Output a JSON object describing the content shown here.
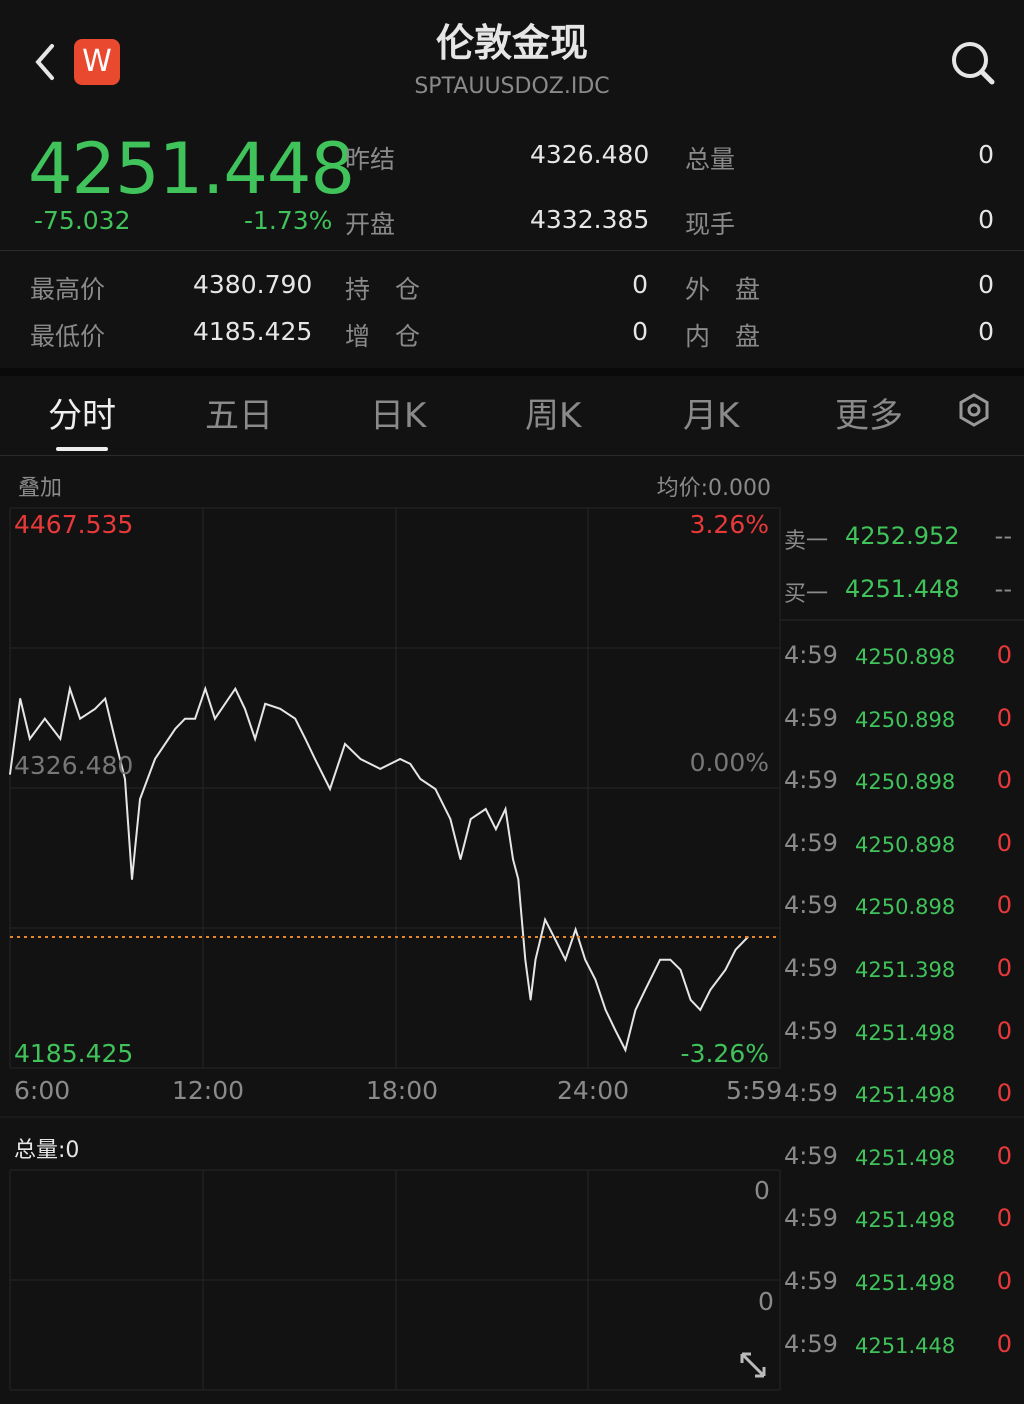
{
  "header": {
    "title": "伦敦金现",
    "code": "SPTAUUSDOZ.IDC",
    "logo": "W",
    "back_icon": "chevron-left-icon",
    "search_icon": "search-icon"
  },
  "quote": {
    "price": "4251.448",
    "change": "-75.032",
    "change_pct": "-1.73%",
    "fields": [
      {
        "label": "昨结",
        "value": "4326.480"
      },
      {
        "label": "总量",
        "value": "0"
      },
      {
        "label": "开盘",
        "value": "4332.385"
      },
      {
        "label": "现手",
        "value": "0"
      }
    ]
  },
  "stats": [
    {
      "label": "最高价",
      "value": "4380.790"
    },
    {
      "label": "持　仓",
      "value": "0"
    },
    {
      "label": "外　盘",
      "value": "0"
    },
    {
      "label": "最低价",
      "value": "4185.425"
    },
    {
      "label": "增　仓",
      "value": "0"
    },
    {
      "label": "内　盘",
      "value": "0"
    }
  ],
  "tabs": [
    {
      "label": "分时",
      "active": true
    },
    {
      "label": "五日"
    },
    {
      "label": "日K"
    },
    {
      "label": "周K"
    },
    {
      "label": "月K"
    },
    {
      "label": "更多"
    }
  ],
  "chart_header": {
    "overlay": "叠加",
    "avg_price": "均价:0.000"
  },
  "chart_data": {
    "type": "line",
    "ylim": [
      4185.425,
      4467.535
    ],
    "prev_close": 4326.48,
    "current": 4251.448,
    "y_labels": {
      "top": "4467.535",
      "mid": "4326.480",
      "bottom": "4185.425"
    },
    "pct_labels": {
      "top": "3.26%",
      "mid": "0.00%",
      "bottom": "-3.26%"
    },
    "x_ticks": [
      "6:00",
      "12:00",
      "18:00",
      "24:00",
      "5:59"
    ],
    "x": [
      "6:00",
      "6:19",
      "6:37",
      "7:05",
      "7:34",
      "7:52",
      "8:11",
      "8:39",
      "8:58",
      "9:16",
      "9:35",
      "9:48",
      "10:03",
      "10:31",
      "11:09",
      "11:27",
      "11:46",
      "12:05",
      "12:23",
      "13:01",
      "13:19",
      "13:38",
      "13:57",
      "14:25",
      "14:53",
      "15:12",
      "15:30",
      "15:58",
      "16:26",
      "16:55",
      "17:32",
      "18:09",
      "18:28",
      "18:47",
      "19:15",
      "19:43",
      "20:02",
      "20:21",
      "20:49",
      "21:08",
      "21:26",
      "21:40",
      "21:50",
      "22:03",
      "22:13",
      "22:22",
      "22:40",
      "22:59",
      "23:18",
      "23:37",
      "23:55",
      "0:14",
      "0:33",
      "0:51",
      "1:10",
      "1:29",
      "1:47",
      "2:15",
      "2:34",
      "2:53",
      "3:12",
      "3:30",
      "3:49",
      "4:17",
      "4:36",
      "4:59"
    ],
    "y": [
      4333.5,
      4371.5,
      4351.2,
      4361.4,
      4351.2,
      4376.5,
      4361.4,
      4366.4,
      4371.5,
      4351.2,
      4331.0,
      4280.5,
      4320.9,
      4341.1,
      4356.3,
      4361.4,
      4361.4,
      4376.5,
      4361.4,
      4376.5,
      4366.4,
      4351.2,
      4368.9,
      4366.4,
      4361.4,
      4351.2,
      4341.1,
      4326.0,
      4348.7,
      4341.1,
      4336.1,
      4341.1,
      4338.6,
      4331.0,
      4326.0,
      4310.8,
      4290.6,
      4310.8,
      4315.9,
      4305.7,
      4315.9,
      4290.6,
      4280.5,
      4240.0,
      4219.8,
      4240.0,
      4260.2,
      4250.1,
      4240.0,
      4255.2,
      4240.0,
      4229.9,
      4214.7,
      4204.6,
      4194.5,
      4214.7,
      4224.8,
      4240.0,
      4240.0,
      4234.9,
      4219.8,
      4214.7,
      4224.8,
      4234.9,
      4245.0,
      4251.4
    ]
  },
  "volume": {
    "label": "总量:0",
    "top": "0",
    "bottom": "0",
    "expand_icon": "expand-icon"
  },
  "order_book": [
    {
      "label": "卖一",
      "price": "4252.952",
      "qty": "--"
    },
    {
      "label": "买一",
      "price": "4251.448",
      "qty": "--"
    }
  ],
  "trades": [
    {
      "time": "4:59",
      "price": "4250.898",
      "qty": "0"
    },
    {
      "time": "4:59",
      "price": "4250.898",
      "qty": "0"
    },
    {
      "time": "4:59",
      "price": "4250.898",
      "qty": "0"
    },
    {
      "time": "4:59",
      "price": "4250.898",
      "qty": "0"
    },
    {
      "time": "4:59",
      "price": "4250.898",
      "qty": "0"
    },
    {
      "time": "4:59",
      "price": "4251.398",
      "qty": "0"
    },
    {
      "time": "4:59",
      "price": "4251.498",
      "qty": "0"
    },
    {
      "time": "4:59",
      "price": "4251.498",
      "qty": "0"
    },
    {
      "time": "4:59",
      "price": "4251.498",
      "qty": "0"
    },
    {
      "time": "4:59",
      "price": "4251.498",
      "qty": "0"
    },
    {
      "time": "4:59",
      "price": "4251.498",
      "qty": "0"
    },
    {
      "time": "4:59",
      "price": "4251.448",
      "qty": "0"
    }
  ],
  "colors": {
    "up": "#e8393a",
    "down": "#3fc35a",
    "line": "#e6e6e6",
    "current_line": "#e8862a"
  }
}
